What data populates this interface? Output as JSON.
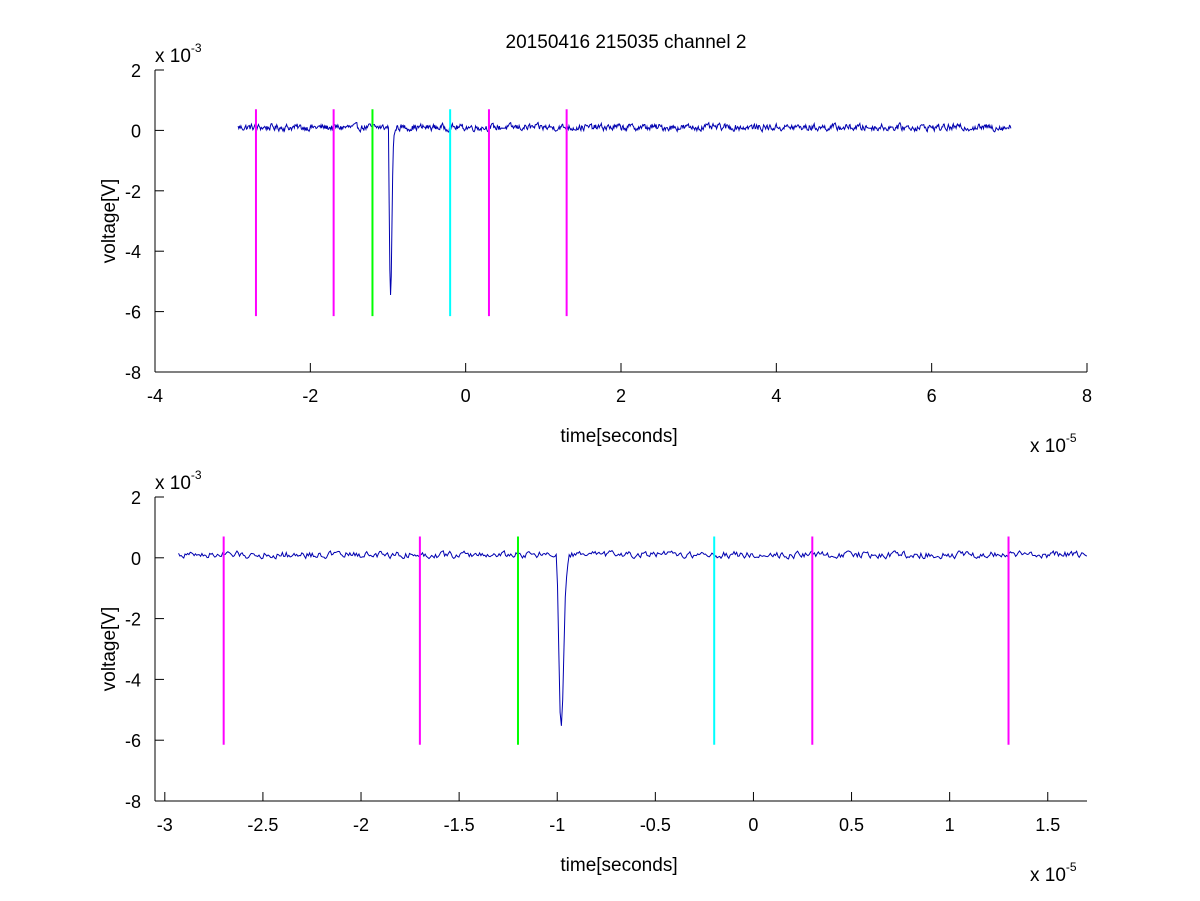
{
  "chart_data": [
    {
      "type": "line",
      "title": "20150416 215035 channel 2",
      "xlabel": "time[seconds]",
      "ylabel": "voltage[V]",
      "x_multiplier": "x 10",
      "x_exponent": "-5",
      "y_multiplier": "x 10",
      "y_exponent": "-3",
      "xlim": [
        -4,
        8
      ],
      "ylim": [
        -8,
        2
      ],
      "xticks": [
        "-4",
        "-2",
        "0",
        "2",
        "4",
        "6",
        "8"
      ],
      "yticks": [
        "2",
        "0",
        "-2",
        "-4",
        "-6",
        "-8"
      ],
      "grid": false,
      "signal": {
        "color": "#0000b0",
        "x_range": [
          -2.93,
          7.02
        ],
        "baseline": 0.1,
        "noise_amplitude": 0.18,
        "pulse": {
          "x": [
            -0.99,
            -0.985,
            -0.975,
            -0.965,
            -0.955,
            -0.945,
            -0.935,
            -0.925,
            -0.9
          ],
          "y": [
            -0.4,
            -2.5,
            -4.9,
            -5.6,
            -4.5,
            -2.2,
            -0.8,
            -0.2,
            0.05
          ]
        }
      },
      "markers": [
        {
          "x": -2.7,
          "color": "#ff00ff",
          "y_top": 0.7,
          "y_bottom": -6.15
        },
        {
          "x": -1.7,
          "color": "#ff00ff",
          "y_top": 0.7,
          "y_bottom": -6.15
        },
        {
          "x": -1.2,
          "color": "#00ff00",
          "y_top": 0.7,
          "y_bottom": -6.15
        },
        {
          "x": -0.2,
          "color": "#00ffff",
          "y_top": 0.7,
          "y_bottom": -6.15
        },
        {
          "x": 0.3,
          "color": "#ff00ff",
          "y_top": 0.7,
          "y_bottom": -6.15
        },
        {
          "x": 1.3,
          "color": "#ff00ff",
          "y_top": 0.7,
          "y_bottom": -6.15
        }
      ]
    },
    {
      "type": "line",
      "title": "",
      "xlabel": "time[seconds]",
      "ylabel": "voltage[V]",
      "x_multiplier": "x 10",
      "x_exponent": "-5",
      "y_multiplier": "x 10",
      "y_exponent": "-3",
      "xlim": [
        -3.05,
        1.7
      ],
      "ylim": [
        -8,
        2
      ],
      "xticks": [
        "-3",
        "-2.5",
        "-2",
        "-1.5",
        "-1",
        "-0.5",
        "0",
        "0.5",
        "1",
        "1.5"
      ],
      "yticks": [
        "2",
        "0",
        "-2",
        "-4",
        "-6",
        "-8"
      ],
      "grid": false,
      "signal": {
        "color": "#0000b0",
        "x_range": [
          -2.93,
          1.7
        ],
        "baseline": 0.1,
        "noise_amplitude": 0.18,
        "pulse": {
          "x": [
            -1.0,
            -0.995,
            -0.99,
            -0.985,
            -0.98,
            -0.975,
            -0.97,
            -0.965,
            -0.96,
            -0.95,
            -0.94
          ],
          "y": [
            -0.5,
            -2.0,
            -3.8,
            -5.2,
            -5.6,
            -5.3,
            -4.2,
            -2.8,
            -1.4,
            -0.4,
            0.05
          ]
        }
      },
      "markers": [
        {
          "x": -2.7,
          "color": "#ff00ff",
          "y_top": 0.7,
          "y_bottom": -6.15
        },
        {
          "x": -1.7,
          "color": "#ff00ff",
          "y_top": 0.7,
          "y_bottom": -6.15
        },
        {
          "x": -1.2,
          "color": "#00ff00",
          "y_top": 0.7,
          "y_bottom": -6.15
        },
        {
          "x": -0.2,
          "color": "#00ffff",
          "y_top": 0.7,
          "y_bottom": -6.15
        },
        {
          "x": 0.3,
          "color": "#ff00ff",
          "y_top": 0.7,
          "y_bottom": -6.15
        },
        {
          "x": 1.3,
          "color": "#ff00ff",
          "y_top": 0.7,
          "y_bottom": -6.15
        }
      ]
    }
  ]
}
